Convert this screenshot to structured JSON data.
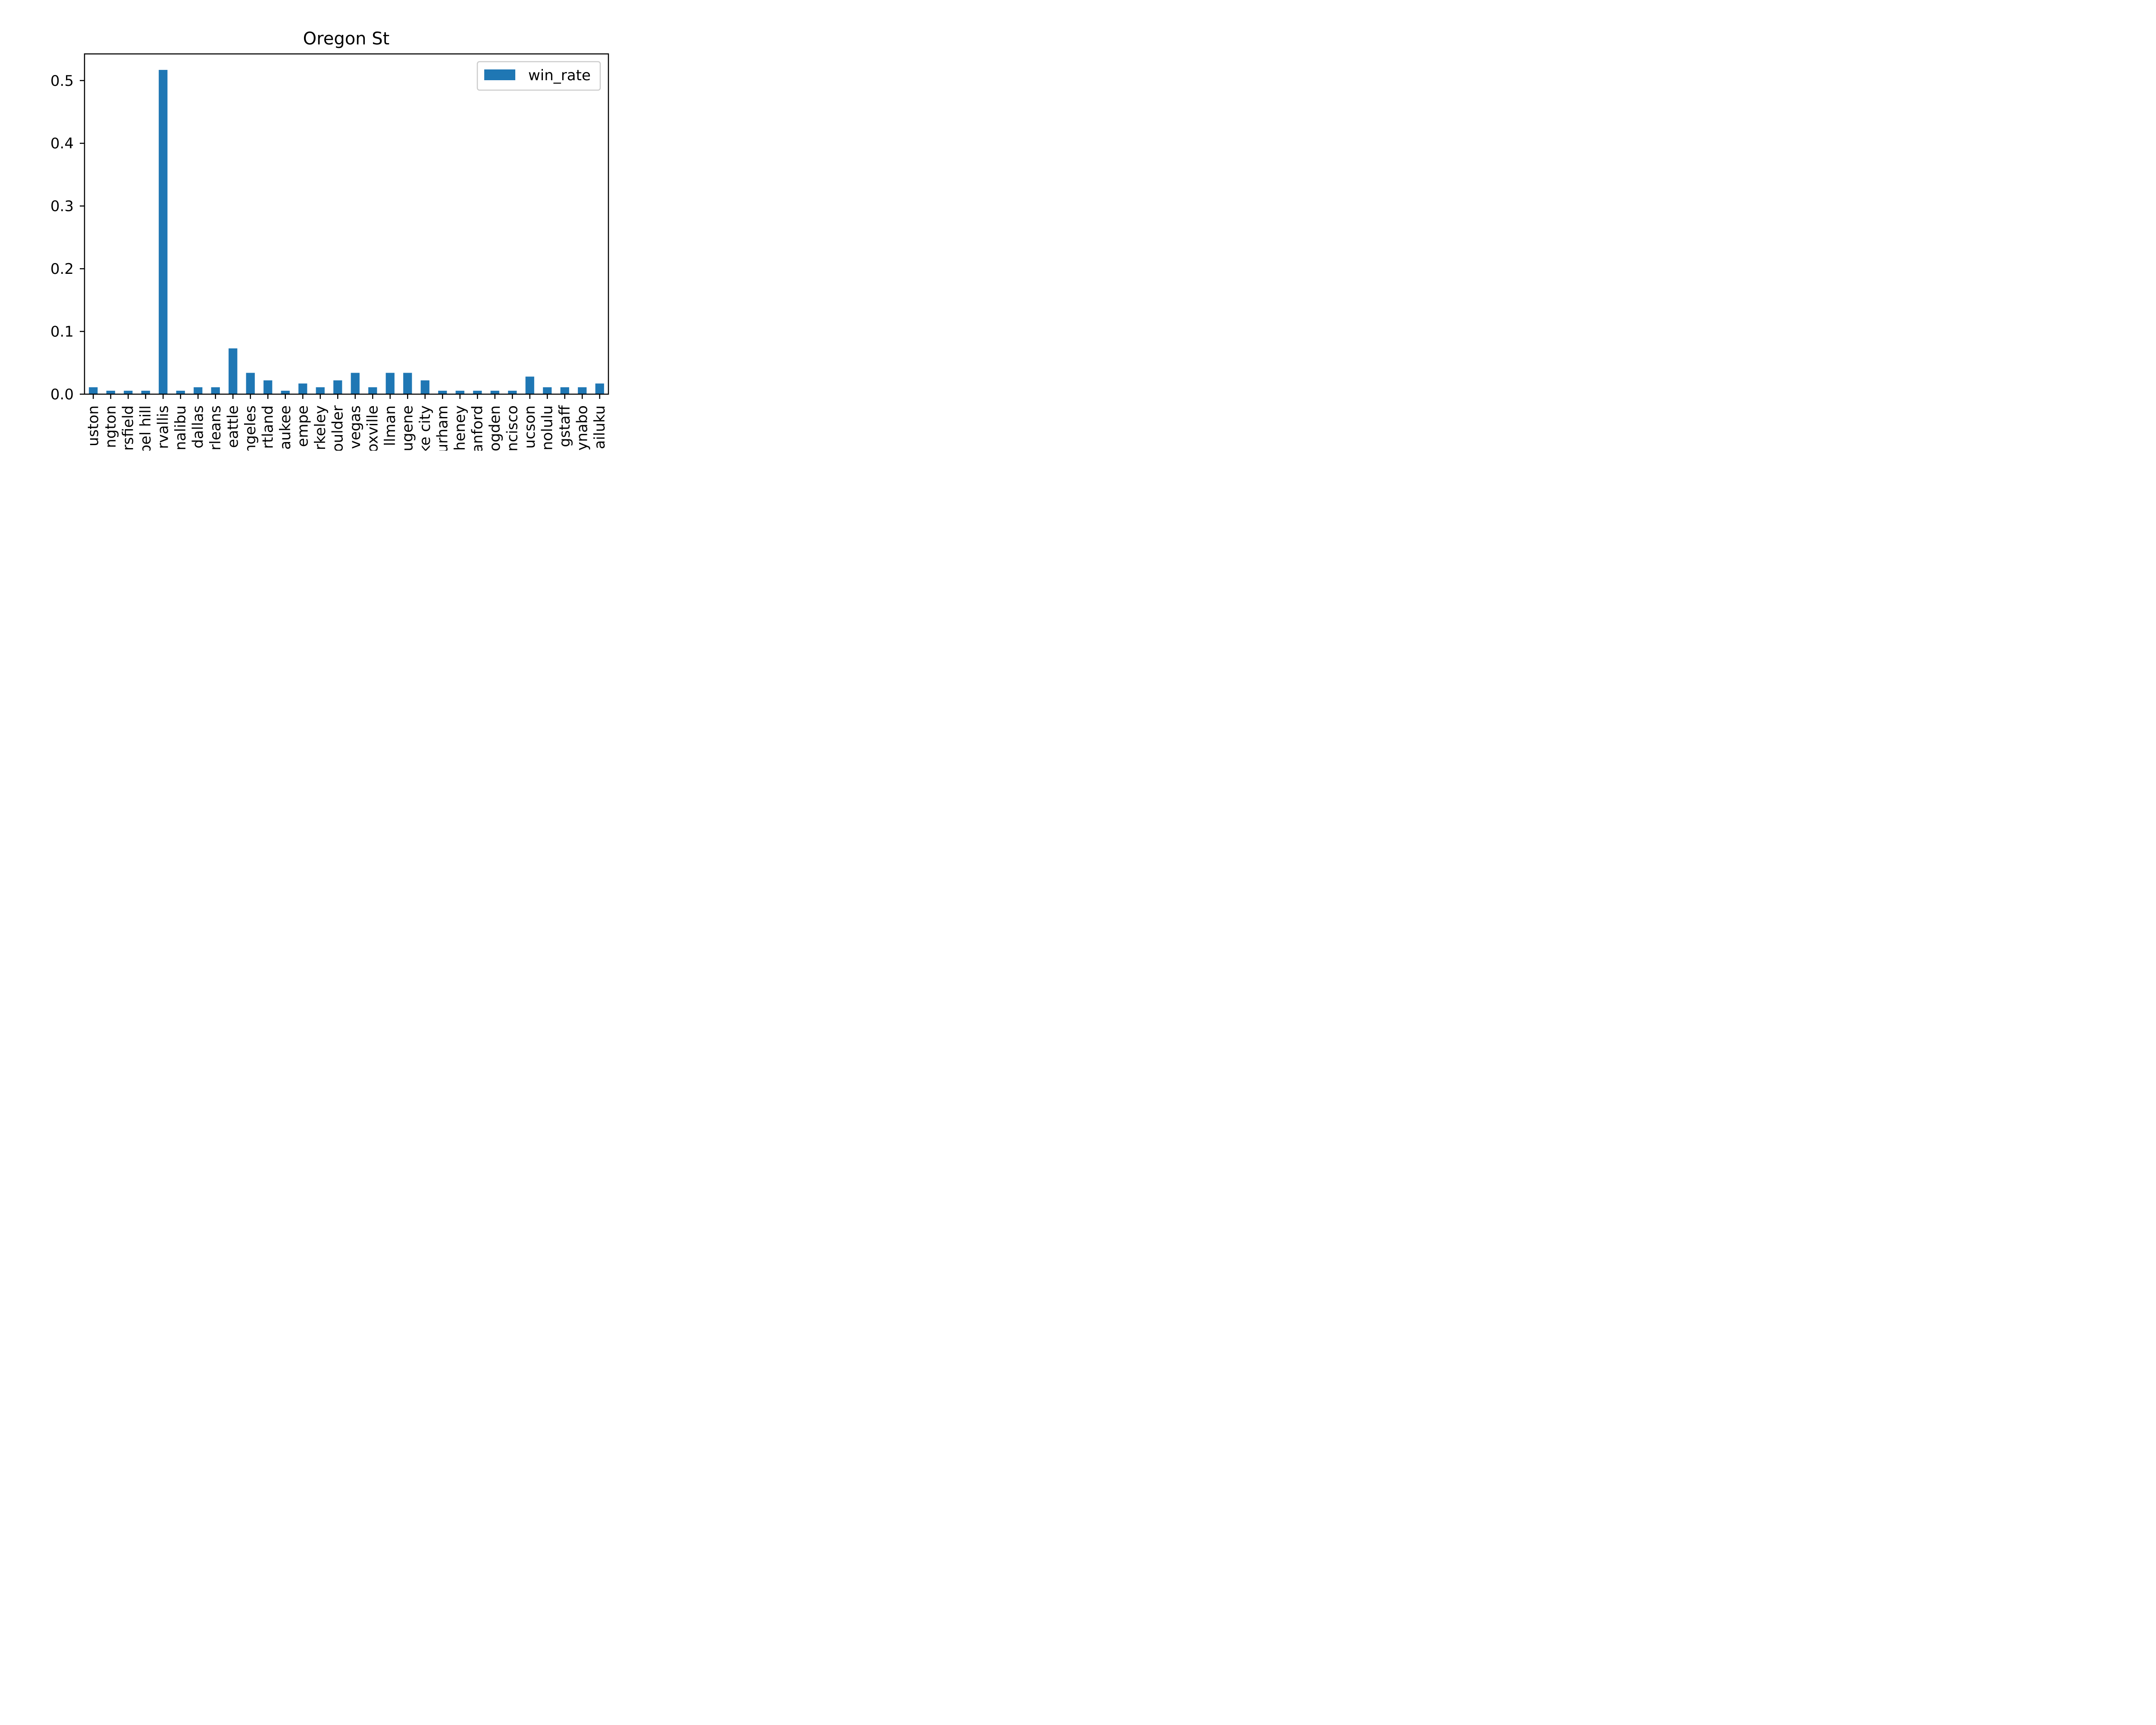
{
  "chart_data": {
    "type": "bar",
    "title": "Oregon St",
    "xlabel": "",
    "ylabel": "",
    "ylim": [
      0,
      0.5425
    ],
    "yticks": [
      0.0,
      0.1,
      0.2,
      0.3,
      0.4,
      0.5
    ],
    "ytick_labels": [
      "0.0",
      "0.1",
      "0.2",
      "0.3",
      "0.4",
      "0.5"
    ],
    "grid": false,
    "legend": {
      "position": "top-right",
      "entries": [
        "win_rate"
      ]
    },
    "categories": [
      "uston",
      "ngton",
      "rsfield",
      "pel hill",
      "rvallis",
      "nalibu",
      "dallas",
      "rleans",
      "eattle",
      "ngeles",
      "rtland",
      "aukee",
      "empe",
      "rkeley",
      "oulder",
      "vegas",
      "oxville",
      "llman",
      "ugene",
      "ke city",
      "urham",
      "heney",
      "anford",
      "ogden",
      "ncisco",
      "ucson",
      "nolulu",
      "gstaff",
      "ynabo",
      "ailuku"
    ],
    "series": [
      {
        "name": "win_rate",
        "color": "#1f77b4",
        "values": [
          0.011,
          0.0055,
          0.0055,
          0.0055,
          0.517,
          0.0055,
          0.011,
          0.011,
          0.073,
          0.034,
          0.022,
          0.0055,
          0.017,
          0.011,
          0.022,
          0.034,
          0.011,
          0.034,
          0.034,
          0.022,
          0.0055,
          0.0055,
          0.0055,
          0.0055,
          0.0055,
          0.028,
          0.011,
          0.011,
          0.011,
          0.017
        ]
      }
    ]
  }
}
